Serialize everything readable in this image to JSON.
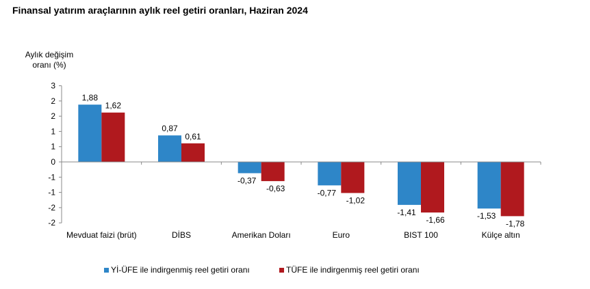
{
  "chart_data": {
    "type": "bar",
    "title": "Finansal yatırım araçlarının aylık reel getiri oranları, Haziran 2024",
    "ylabel_lines": [
      "Aylık değişim",
      "oranı (%)"
    ],
    "xlabel": "",
    "categories": [
      "Mevduat faizi (brüt)",
      "DİBS",
      "Amerikan Doları",
      "Euro",
      "BIST 100",
      "Külçe altın"
    ],
    "series": [
      {
        "name": "Yİ-ÜFE ile indirgenmiş reel getiri oranı",
        "color": "#2E86C8",
        "values": [
          1.88,
          0.87,
          -0.37,
          -0.77,
          -1.41,
          -1.53
        ],
        "labels": [
          "1,88",
          "0,87",
          "-0,37",
          "-0,77",
          "-1,41",
          "-1,53"
        ]
      },
      {
        "name": "TÜFE ile indirgenmiş reel getiri oranı",
        "color": "#B0191E",
        "values": [
          1.62,
          0.61,
          -0.63,
          -1.02,
          -1.66,
          -1.78
        ],
        "labels": [
          "1,62",
          "0,61",
          "-0,63",
          "-1,02",
          "-1,66",
          "-1,78"
        ]
      }
    ],
    "ylim": [
      -2,
      2.5
    ],
    "yticks": [
      2.5,
      2,
      1.5,
      1,
      0.5,
      0,
      -0.5,
      -1,
      -1.5,
      -2
    ],
    "ytick_labels": [
      "3",
      "2",
      "2",
      "1",
      "1",
      "0",
      "-1",
      "-1",
      "-2",
      "-2"
    ],
    "legend_position": "bottom",
    "grid": false
  }
}
